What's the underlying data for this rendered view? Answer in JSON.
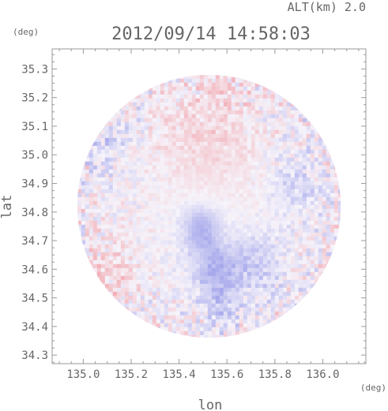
{
  "header": {
    "altitude_label": "ALT(km) 2.0",
    "timestamp": "2012/09/14 14:58:03"
  },
  "chart_data": {
    "type": "heatmap",
    "title": "2012/09/14 14:58:03",
    "annotation": "ALT(km) 2.0",
    "xlabel": "lon",
    "ylabel": "lat",
    "xunit": "(deg)",
    "yunit": "(deg)",
    "xlim": [
      134.87,
      136.18
    ],
    "ylim": [
      34.27,
      35.37
    ],
    "xticks": [
      "135.0",
      "135.2",
      "135.4",
      "135.6",
      "135.8",
      "136.0"
    ],
    "yticks": [
      "35.3",
      "35.2",
      "35.1",
      "35.0",
      "34.9",
      "34.8",
      "34.7",
      "34.6",
      "34.5",
      "34.4",
      "34.3"
    ],
    "domain": {
      "center_lon": 135.525,
      "center_lat": 34.82,
      "radius_deg": 0.55
    },
    "colors": {
      "positive": "#f2a0a8",
      "negative": "#a6a8ec",
      "neutral": "#f6f3fa"
    },
    "regions": [
      {
        "lon": 135.52,
        "lat": 35.08,
        "r": 0.22,
        "value": 0.35
      },
      {
        "lon": 135.49,
        "lat": 34.74,
        "r": 0.08,
        "value": -0.85
      },
      {
        "lon": 135.55,
        "lat": 34.6,
        "r": 0.09,
        "value": -0.8
      },
      {
        "lon": 135.72,
        "lat": 34.62,
        "r": 0.11,
        "value": -0.55
      },
      {
        "lon": 135.58,
        "lat": 34.48,
        "r": 0.08,
        "value": -0.45
      },
      {
        "lon": 135.12,
        "lat": 34.58,
        "r": 0.12,
        "value": 0.3
      },
      {
        "lon": 135.9,
        "lat": 34.9,
        "r": 0.11,
        "value": -0.4
      },
      {
        "lon": 135.1,
        "lat": 35.05,
        "r": 0.12,
        "value": -0.3
      }
    ]
  }
}
